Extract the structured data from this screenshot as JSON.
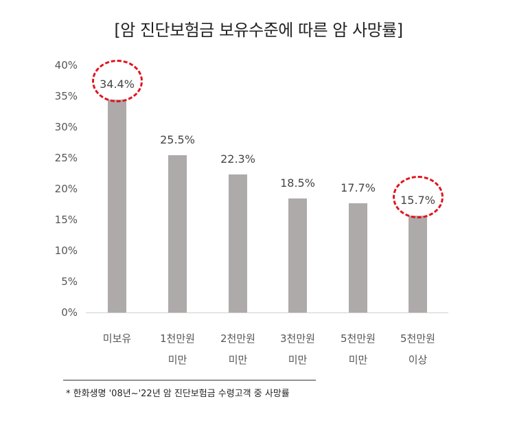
{
  "chart_data": {
    "type": "bar",
    "title": "[암 진단보험금 보유수준에 따른 암 사망률]",
    "categories": [
      "미보유",
      "1천만원 미만",
      "2천만원 미만",
      "3천만원 미만",
      "5천만원 미만",
      "5천만원 이상"
    ],
    "category_lines": [
      [
        "미보유",
        ""
      ],
      [
        "1천만원",
        "미만"
      ],
      [
        "2천만원",
        "미만"
      ],
      [
        "3천만원",
        "미만"
      ],
      [
        "5천만원",
        "미만"
      ],
      [
        "5천만원",
        "이상"
      ]
    ],
    "values": [
      34.4,
      25.5,
      22.3,
      18.5,
      17.7,
      15.7
    ],
    "value_labels": [
      "34.4%",
      "25.5%",
      "22.3%",
      "18.5%",
      "17.7%",
      "15.7%"
    ],
    "xlabel": "",
    "ylabel": "",
    "ylim": [
      0,
      40
    ],
    "yticks": [
      "0%",
      "5%",
      "10%",
      "15%",
      "20%",
      "25%",
      "30%",
      "35%",
      "40%"
    ],
    "grid": false,
    "legend": null,
    "highlighted_indices": [
      0,
      5
    ],
    "annotation": "* 한화생명 '08년~'22년 암 진단보험금 수령고객 중 사망률"
  },
  "colors": {
    "bar": "#adaaa9",
    "highlight": "#e0141e",
    "axis": "#d0d0d0"
  }
}
